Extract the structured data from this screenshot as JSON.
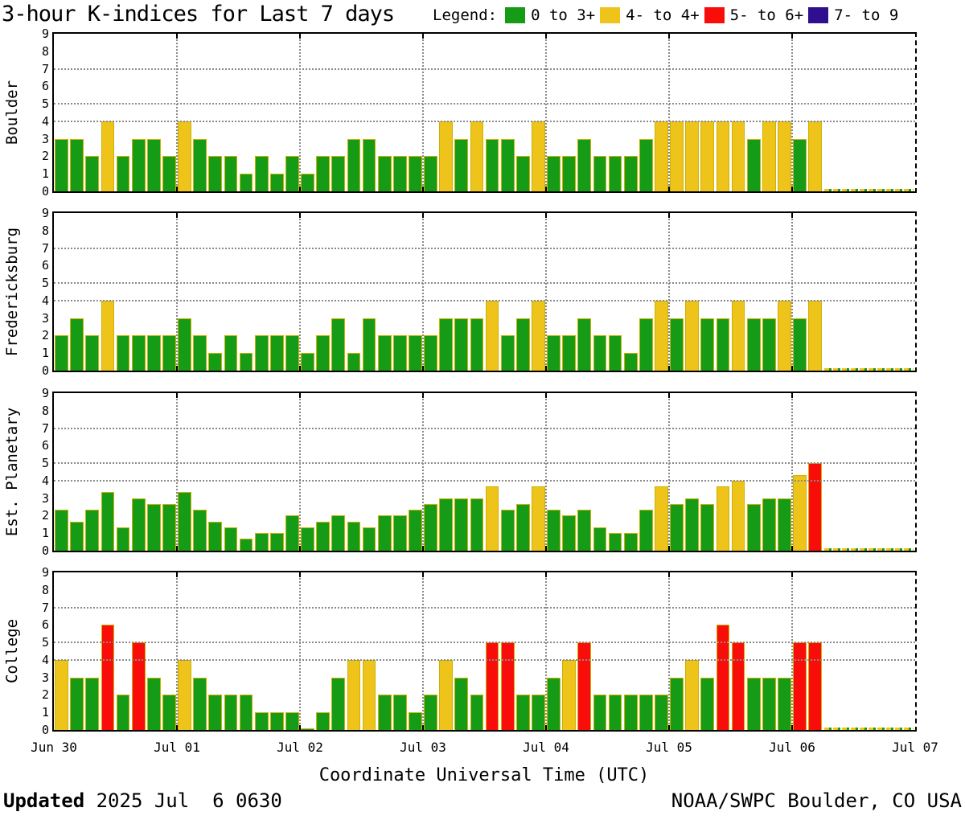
{
  "title": "3-hour K-indices for Last 7 days",
  "legend": {
    "label": "Legend:",
    "items": [
      {
        "label": "0 to 3+",
        "color": "#169B17"
      },
      {
        "label": "4- to 4+",
        "color": "#EEC41A"
      },
      {
        "label": "5- to 6+",
        "color": "#F90D0A"
      },
      {
        "label": "7- to 9",
        "color": "#2F0E8F"
      }
    ]
  },
  "y_axis": {
    "ticks": [
      9,
      8,
      7,
      6,
      5,
      4,
      3,
      2,
      1,
      0
    ],
    "reference_lines": [
      4,
      5,
      7
    ],
    "range": [
      0,
      9
    ]
  },
  "x_axis": {
    "day_labels": [
      "Jun 30",
      "Jul 01",
      "Jul 02",
      "Jul 03",
      "Jul 04",
      "Jul 05",
      "Jul 06",
      "Jul 07"
    ],
    "axis_title": "Coordinate Universal Time (UTC)",
    "bin_hours": 3,
    "bins_per_day": 8
  },
  "footer": {
    "updated_label": "Updated",
    "updated_value": " 2025 Jul  6 0630",
    "credit": "NOAA/SWPC Boulder, CO USA"
  },
  "chart_data": [
    {
      "type": "bar",
      "station": "Boulder",
      "start": "Jun 30 0000 UTC",
      "no_data_after_bin": 50,
      "values": [
        3,
        3,
        2,
        4,
        2,
        3,
        3,
        2,
        4,
        3,
        2,
        2,
        1,
        2,
        1,
        2,
        1,
        2,
        2,
        3,
        3,
        2,
        2,
        2,
        2,
        4,
        3,
        4,
        3,
        3,
        2,
        4,
        2,
        2,
        3,
        2,
        2,
        2,
        3,
        4,
        4,
        4,
        4,
        4,
        4,
        3,
        4,
        4,
        3,
        4
      ]
    },
    {
      "type": "bar",
      "station": "Fredericksburg",
      "start": "Jun 30 0000 UTC",
      "no_data_after_bin": 50,
      "values": [
        2,
        3,
        2,
        4,
        2,
        2,
        2,
        2,
        3,
        2,
        1,
        2,
        1,
        2,
        2,
        2,
        1,
        2,
        3,
        1,
        3,
        2,
        2,
        2,
        2,
        3,
        3,
        3,
        4,
        2,
        3,
        4,
        2,
        2,
        3,
        2,
        2,
        1,
        3,
        4,
        3,
        4,
        3,
        3,
        4,
        3,
        3,
        4,
        3,
        4
      ]
    },
    {
      "type": "bar",
      "station": "Est. Planetary",
      "start": "Jun 30 0000 UTC",
      "no_data_after_bin": 50,
      "values": [
        2.33,
        1.67,
        2.33,
        3.33,
        1.33,
        3,
        2.67,
        2.67,
        3.33,
        2.33,
        1.67,
        1.33,
        0.67,
        1,
        1,
        2,
        1.33,
        1.67,
        2,
        1.67,
        1.33,
        2,
        2,
        2.33,
        2.67,
        3,
        3,
        3,
        3.67,
        2.33,
        2.67,
        3.67,
        2.33,
        2,
        2.33,
        1.33,
        1,
        1,
        2.33,
        3.67,
        2.67,
        3,
        2.67,
        3.67,
        4,
        2.67,
        3,
        3,
        4.33,
        5
      ]
    },
    {
      "type": "bar",
      "station": "College",
      "start": "Jun 30 0000 UTC",
      "no_data_after_bin": 50,
      "values": [
        4,
        3,
        3,
        6,
        2,
        5,
        3,
        2,
        4,
        3,
        2,
        2,
        2,
        1,
        1,
        1,
        0,
        1,
        3,
        4,
        4,
        2,
        2,
        1,
        2,
        4,
        3,
        2,
        5,
        5,
        2,
        2,
        3,
        4,
        5,
        2,
        2,
        2,
        2,
        2,
        3,
        4,
        3,
        6,
        5,
        3,
        3,
        3,
        5,
        5
      ]
    }
  ],
  "color_thresholds": {
    "green_max": 3.33,
    "yellow_max": 4.33,
    "red_max": 6.33
  }
}
